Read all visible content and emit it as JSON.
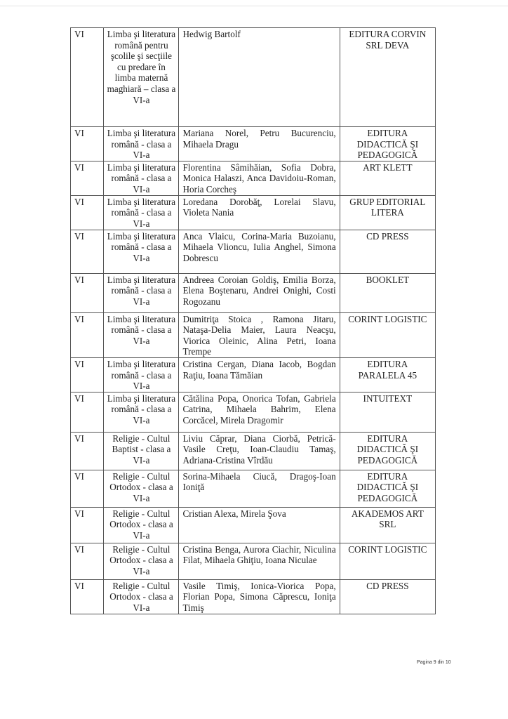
{
  "rows": [
    {
      "clasa": "VI",
      "disciplina": "Limba şi literatura română pentru şcolile şi secţiile cu predare în limba maternă maghiară – clasa a VI-a",
      "autori": "Hedwig Bartolf",
      "editura": "EDITURA CORVIN SRL DEVA"
    },
    {
      "clasa": "VI",
      "disciplina": "Limba şi literatura română - clasa a VI-a",
      "autori": "Mariana Norel, Petru Bucurenciu, Mihaela Dragu",
      "editura": "EDITURA DIDACTICĂ ŞI PEDAGOGICĂ"
    },
    {
      "clasa": "VI",
      "disciplina": "Limba şi literatura română - clasa a VI-a",
      "autori": "Florentina Sâmihăian, Sofia Dobra, Monica Halaszi, Anca Davidoiu-Roman, Horia Corcheş",
      "editura": "ART KLETT"
    },
    {
      "clasa": "VI",
      "disciplina": "Limba şi literatura română - clasa a VI-a",
      "autori": "Loredana Dorobăţ, Lorelai Slavu, Violeta Nania",
      "editura": "GRUP EDITORIAL LITERA"
    },
    {
      "clasa": "VI",
      "disciplina": "Limba şi literatura română - clasa a VI-a",
      "autori": "Anca Vlaicu, Corina-Maria Buzoianu, Mihaela Vlioncu, Iulia Anghel, Simona Dobrescu",
      "editura": "CD PRESS"
    },
    {
      "clasa": "VI",
      "disciplina": "Limba şi literatura română - clasa a VI-a",
      "autori": "Andreea Coroian Goldiş, Emilia Borza, Elena Boştenaru, Andrei Onighi, Costi Rogozanu",
      "editura": "BOOKLET"
    },
    {
      "clasa": "VI",
      "disciplina": "Limba şi literatura română - clasa a VI-a",
      "autori": "Dumitriţa Stoica , Ramona Jitaru, Nataşa-Delia Maier, Laura Neacşu, Viorica Oleinic, Alina Petri, Ioana Trempe",
      "editura": "CORINT LOGISTIC"
    },
    {
      "clasa": "VI",
      "disciplina": "Limba şi literatura română - clasa a VI-a",
      "autori": "Cristina Cergan, Diana Iacob, Bogdan Raţiu, Ioana Tămăian",
      "editura": "EDITURA PARALELA 45"
    },
    {
      "clasa": "VI",
      "disciplina": "Limba şi literatura română - clasa a VI-a",
      "autori": "Cătălina Popa, Onorica Tofan, Gabriela Catrina, Mihaela Bahrim, Elena Corcăcel, Mirela Dragomir",
      "editura": "INTUITEXT"
    },
    {
      "clasa": "VI",
      "disciplina": "Religie - Cultul Baptist - clasa a VI-a",
      "autori": "Liviu Căprar, Diana Ciorbă, Petrică-Vasile Creţu, Ioan-Claudiu Tamaş, Adriana-Cristina Vîrdău",
      "editura": "EDITURA DIDACTICĂ ŞI PEDAGOGICĂ"
    },
    {
      "clasa": "VI",
      "disciplina": "Religie - Cultul Ortodox - clasa a VI-a",
      "autori": "Sorina-Mihaela Ciucă, Dragoş-Ioan Ioniţă",
      "editura": "EDITURA DIDACTICĂ ŞI PEDAGOGICĂ"
    },
    {
      "clasa": "VI",
      "disciplina": "Religie - Cultul Ortodox - clasa a VI-a",
      "autori": "Cristian Alexa, Mirela Şova",
      "editura": "AKADEMOS ART SRL"
    },
    {
      "clasa": "VI",
      "disciplina": "Religie - Cultul Ortodox - clasa a VI-a",
      "autori": "Cristina Benga, Aurora Ciachir, Niculina Filat, Mihaela Ghiţiu, Ioana Niculae",
      "editura": "CORINT LOGISTIC"
    },
    {
      "clasa": "VI",
      "disciplina": "Religie - Cultul Ortodox - clasa a VI-a",
      "autori": "Vasile Timiş, Ionica-Viorica Popa, Florian Popa, Simona Căprescu, Ioniţa Timiş",
      "editura": "CD PRESS"
    }
  ],
  "footer": {
    "page_label": "Pagina 9 din 10"
  }
}
